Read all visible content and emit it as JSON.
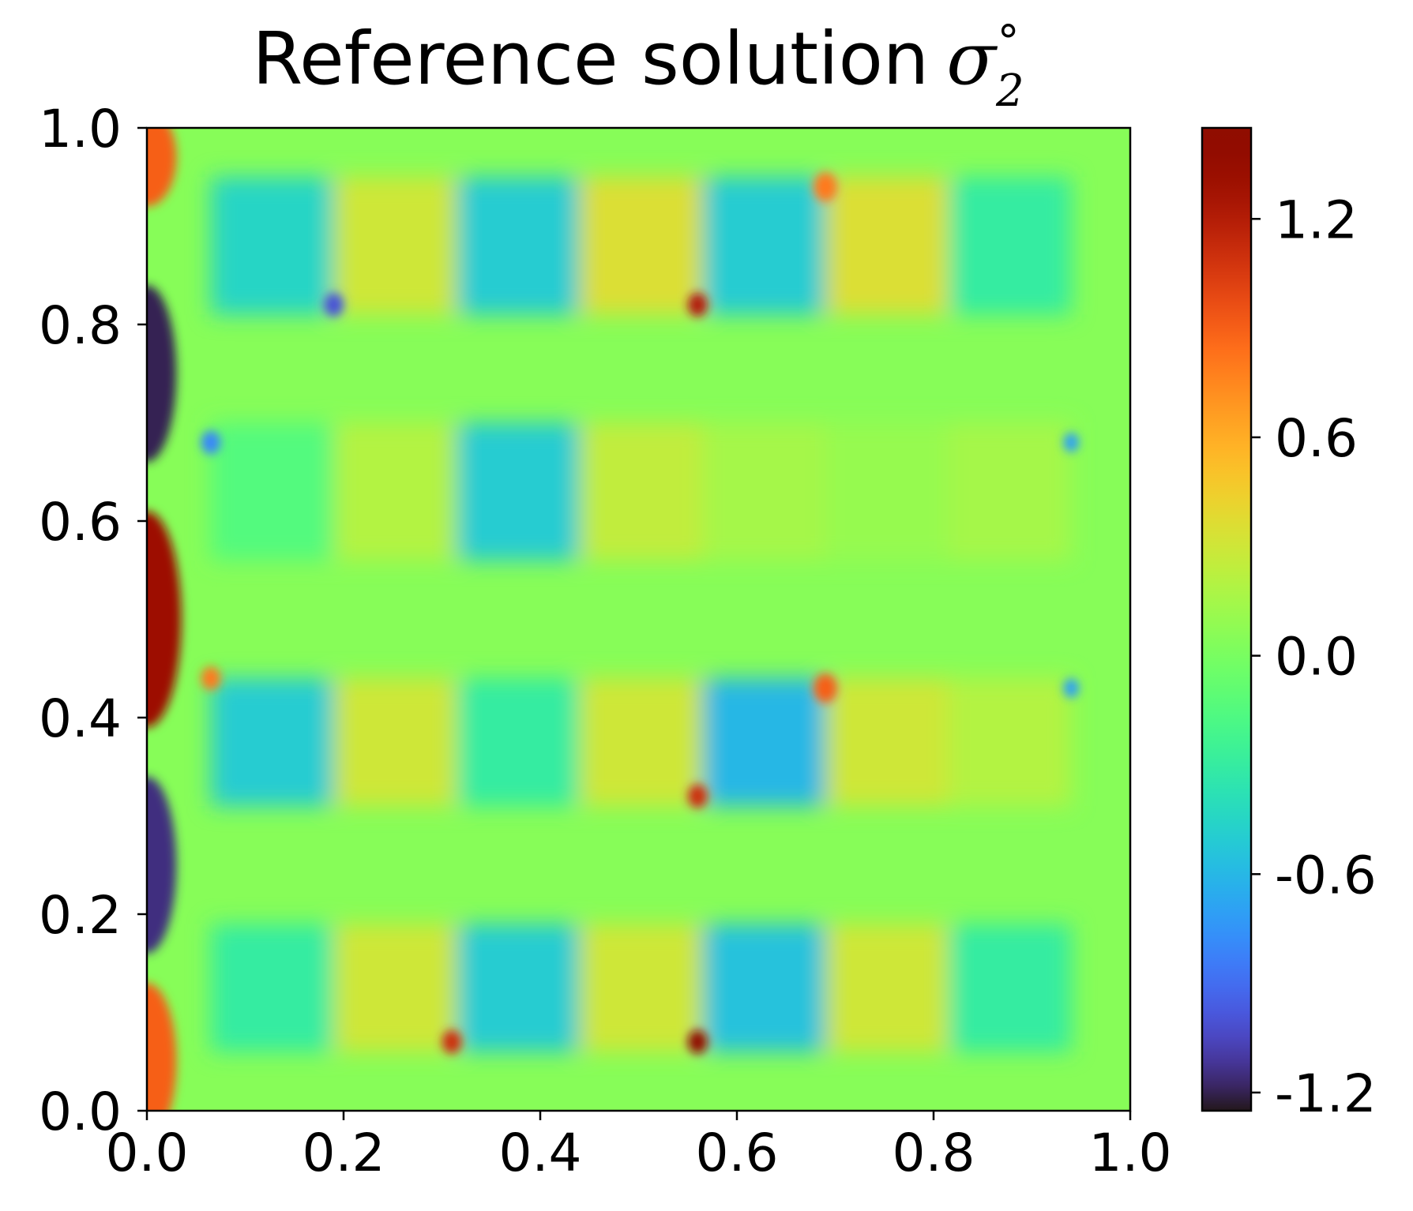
{
  "chart_data": {
    "type": "heatmap",
    "title": "Reference solution",
    "title_symbol": "σ",
    "title_subscript": "2",
    "title_superscript": "°",
    "xlabel": "",
    "ylabel": "",
    "xlim": [
      0.0,
      1.0
    ],
    "ylim": [
      0.0,
      1.0
    ],
    "x_ticks": [
      {
        "value": 0.0,
        "label": "0.0"
      },
      {
        "value": 0.2,
        "label": "0.2"
      },
      {
        "value": 0.4,
        "label": "0.4"
      },
      {
        "value": 0.6,
        "label": "0.6"
      },
      {
        "value": 0.8,
        "label": "0.8"
      },
      {
        "value": 1.0,
        "label": "1.0"
      }
    ],
    "y_ticks": [
      {
        "value": 0.0,
        "label": "0.0"
      },
      {
        "value": 0.2,
        "label": "0.2"
      },
      {
        "value": 0.4,
        "label": "0.4"
      },
      {
        "value": 0.6,
        "label": "0.6"
      },
      {
        "value": 0.8,
        "label": "0.8"
      },
      {
        "value": 1.0,
        "label": "1.0"
      }
    ],
    "colorbar": {
      "colormap": "turbo",
      "vmin": -1.25,
      "vmax": 1.45,
      "ticks": [
        {
          "value": 1.2,
          "label": "1.2"
        },
        {
          "value": 0.6,
          "label": "0.6"
        },
        {
          "value": 0.0,
          "label": "0.0"
        },
        {
          "value": -0.6,
          "label": "-0.6"
        },
        {
          "value": -1.2,
          "label": "-1.2"
        }
      ]
    },
    "grid": false,
    "field": {
      "background": 0.05,
      "blocks": [
        {
          "x0": 0.065,
          "x1": 0.19,
          "y0": 0.81,
          "y1": 0.95,
          "value": -0.45
        },
        {
          "x0": 0.19,
          "x1": 0.315,
          "y0": 0.81,
          "y1": 0.95,
          "value": 0.3
        },
        {
          "x0": 0.315,
          "x1": 0.44,
          "y0": 0.81,
          "y1": 0.95,
          "value": -0.5
        },
        {
          "x0": 0.44,
          "x1": 0.565,
          "y0": 0.81,
          "y1": 0.95,
          "value": 0.35
        },
        {
          "x0": 0.565,
          "x1": 0.69,
          "y0": 0.81,
          "y1": 0.95,
          "value": -0.5
        },
        {
          "x0": 0.69,
          "x1": 0.815,
          "y0": 0.81,
          "y1": 0.95,
          "value": 0.35
        },
        {
          "x0": 0.815,
          "x1": 0.94,
          "y0": 0.81,
          "y1": 0.95,
          "value": -0.3
        },
        {
          "x0": 0.065,
          "x1": 0.19,
          "y0": 0.56,
          "y1": 0.7,
          "value": -0.15
        },
        {
          "x0": 0.19,
          "x1": 0.315,
          "y0": 0.56,
          "y1": 0.7,
          "value": 0.2
        },
        {
          "x0": 0.315,
          "x1": 0.44,
          "y0": 0.56,
          "y1": 0.7,
          "value": -0.5
        },
        {
          "x0": 0.44,
          "x1": 0.565,
          "y0": 0.56,
          "y1": 0.7,
          "value": 0.25
        },
        {
          "x0": 0.565,
          "x1": 0.69,
          "y0": 0.56,
          "y1": 0.7,
          "value": 0.15
        },
        {
          "x0": 0.69,
          "x1": 0.815,
          "y0": 0.56,
          "y1": 0.7,
          "value": 0.1
        },
        {
          "x0": 0.815,
          "x1": 0.94,
          "y0": 0.56,
          "y1": 0.7,
          "value": 0.15
        },
        {
          "x0": 0.065,
          "x1": 0.19,
          "y0": 0.31,
          "y1": 0.44,
          "value": -0.5
        },
        {
          "x0": 0.19,
          "x1": 0.315,
          "y0": 0.31,
          "y1": 0.44,
          "value": 0.3
        },
        {
          "x0": 0.315,
          "x1": 0.44,
          "y0": 0.31,
          "y1": 0.44,
          "value": -0.3
        },
        {
          "x0": 0.44,
          "x1": 0.565,
          "y0": 0.31,
          "y1": 0.44,
          "value": 0.3
        },
        {
          "x0": 0.565,
          "x1": 0.69,
          "y0": 0.31,
          "y1": 0.44,
          "value": -0.6
        },
        {
          "x0": 0.69,
          "x1": 0.815,
          "y0": 0.31,
          "y1": 0.44,
          "value": 0.3
        },
        {
          "x0": 0.815,
          "x1": 0.94,
          "y0": 0.31,
          "y1": 0.44,
          "value": 0.2
        },
        {
          "x0": 0.065,
          "x1": 0.19,
          "y0": 0.06,
          "y1": 0.19,
          "value": -0.3
        },
        {
          "x0": 0.19,
          "x1": 0.315,
          "y0": 0.06,
          "y1": 0.19,
          "value": 0.3
        },
        {
          "x0": 0.315,
          "x1": 0.44,
          "y0": 0.06,
          "y1": 0.19,
          "value": -0.5
        },
        {
          "x0": 0.44,
          "x1": 0.565,
          "y0": 0.06,
          "y1": 0.19,
          "value": 0.3
        },
        {
          "x0": 0.565,
          "x1": 0.69,
          "y0": 0.06,
          "y1": 0.19,
          "value": -0.55
        },
        {
          "x0": 0.69,
          "x1": 0.815,
          "y0": 0.06,
          "y1": 0.19,
          "value": 0.3
        },
        {
          "x0": 0.815,
          "x1": 0.94,
          "y0": 0.06,
          "y1": 0.19,
          "value": -0.3
        }
      ],
      "hotspots": [
        {
          "x": 0.0,
          "y": 0.5,
          "value": 1.3,
          "rx": 0.035,
          "ry": 0.11
        },
        {
          "x": 0.0,
          "y": 0.97,
          "value": 0.9,
          "rx": 0.03,
          "ry": 0.05
        },
        {
          "x": 0.0,
          "y": 0.05,
          "value": 0.9,
          "rx": 0.03,
          "ry": 0.08
        },
        {
          "x": 0.0,
          "y": 0.75,
          "value": -1.2,
          "rx": 0.03,
          "ry": 0.09
        },
        {
          "x": 0.0,
          "y": 0.25,
          "value": -1.15,
          "rx": 0.03,
          "ry": 0.09
        },
        {
          "x": 0.19,
          "y": 0.82,
          "value": -1.0,
          "rx": 0.01,
          "ry": 0.012
        },
        {
          "x": 0.31,
          "y": 0.07,
          "value": 1.1,
          "rx": 0.01,
          "ry": 0.012
        },
        {
          "x": 0.56,
          "y": 0.07,
          "value": 1.4,
          "rx": 0.01,
          "ry": 0.012
        },
        {
          "x": 0.56,
          "y": 0.82,
          "value": 1.2,
          "rx": 0.01,
          "ry": 0.012
        },
        {
          "x": 0.56,
          "y": 0.32,
          "value": 1.1,
          "rx": 0.01,
          "ry": 0.012
        },
        {
          "x": 0.69,
          "y": 0.43,
          "value": 0.9,
          "rx": 0.012,
          "ry": 0.015
        },
        {
          "x": 0.69,
          "y": 0.94,
          "value": 0.8,
          "rx": 0.012,
          "ry": 0.015
        },
        {
          "x": 0.065,
          "y": 0.44,
          "value": 0.8,
          "rx": 0.01,
          "ry": 0.012
        },
        {
          "x": 0.065,
          "y": 0.68,
          "value": -0.8,
          "rx": 0.01,
          "ry": 0.012
        },
        {
          "x": 0.94,
          "y": 0.43,
          "value": -0.7,
          "rx": 0.008,
          "ry": 0.01
        },
        {
          "x": 0.94,
          "y": 0.68,
          "value": -0.7,
          "rx": 0.008,
          "ry": 0.01
        }
      ]
    }
  }
}
